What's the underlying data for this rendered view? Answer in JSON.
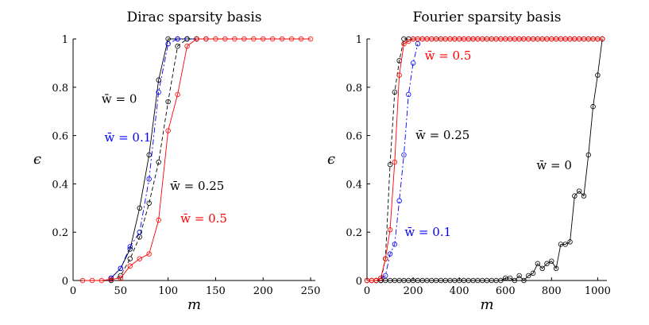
{
  "chart_data": [
    {
      "type": "line",
      "title": "Dirac sparsity basis",
      "xlabel": "m",
      "ylabel": "ϵ",
      "xlim": [
        0,
        255
      ],
      "ylim": [
        0,
        1
      ],
      "xticks": [
        "0",
        "50",
        "100",
        "150",
        "200",
        "250"
      ],
      "yticks": [
        "0",
        "0.2",
        "0.4",
        "0.6",
        "0.8",
        "1"
      ],
      "grid": false,
      "annotations": [
        {
          "text": "w̄ = 0",
          "color": "#000000",
          "x": 30,
          "y": 0.735
        },
        {
          "text": "w̄ = 0.1",
          "color": "#0000ff",
          "x": 33,
          "y": 0.575
        },
        {
          "text": "w̄ = 0.25",
          "color": "#000000",
          "x": 102,
          "y": 0.375
        },
        {
          "text": "w̄ = 0.5",
          "color": "#ff0000",
          "x": 113,
          "y": 0.24
        }
      ],
      "series": [
        {
          "color": "#000000",
          "dash": "solid",
          "x": [
            40,
            50,
            60,
            70,
            80,
            90,
            100,
            110,
            120,
            130,
            140
          ],
          "y": [
            0.01,
            0.05,
            0.13,
            0.3,
            0.52,
            0.83,
            1.0,
            1.0,
            1.0,
            1.0,
            1.0
          ]
        },
        {
          "color": "#0000ff",
          "dash": "dashdot",
          "x": [
            40,
            50,
            60,
            70,
            80,
            90,
            100,
            110,
            120,
            130
          ],
          "y": [
            0.01,
            0.05,
            0.14,
            0.2,
            0.42,
            0.78,
            0.98,
            1.0,
            1.0,
            1.0
          ]
        },
        {
          "color": "#000000",
          "dash": "dashed",
          "x": [
            40,
            50,
            60,
            70,
            80,
            90,
            100,
            110,
            120,
            130
          ],
          "y": [
            0.0,
            0.02,
            0.09,
            0.18,
            0.32,
            0.49,
            0.74,
            0.97,
            1.0,
            1.0
          ]
        },
        {
          "color": "#ff0000",
          "dash": "solid",
          "x": [
            10,
            20,
            30,
            40,
            50,
            60,
            70,
            80,
            90,
            100,
            110,
            120,
            130,
            140,
            150,
            160,
            170,
            180,
            190,
            200,
            210,
            220,
            230,
            240,
            250
          ],
          "y": [
            0,
            0,
            0,
            0.005,
            0.01,
            0.06,
            0.09,
            0.11,
            0.25,
            0.62,
            0.77,
            0.97,
            1.0,
            1.0,
            1.0,
            1.0,
            1.0,
            1.0,
            1.0,
            1.0,
            1.0,
            1.0,
            1.0,
            1.0,
            1.0
          ]
        }
      ]
    },
    {
      "type": "line",
      "title": "Fourier sparsity basis",
      "xlabel": "m",
      "ylabel": "ϵ",
      "xlim": [
        0,
        1040
      ],
      "ylim": [
        0,
        1
      ],
      "xticks": [
        "0",
        "200",
        "400",
        "600",
        "800",
        "1000"
      ],
      "yticks": [
        "0",
        "0.2",
        "0.4",
        "0.6",
        "0.8",
        "1"
      ],
      "grid": false,
      "annotations": [
        {
          "text": "w̄ = 0.5",
          "color": "#ff0000",
          "x": 250,
          "y": 0.915
        },
        {
          "text": "w̄ = 0.25",
          "color": "#000000",
          "x": 210,
          "y": 0.585
        },
        {
          "text": "w̄ = 0",
          "color": "#000000",
          "x": 735,
          "y": 0.46
        },
        {
          "text": "w̄ = 0.1",
          "color": "#0000ff",
          "x": 163,
          "y": 0.185
        }
      ],
      "series": [
        {
          "color": "#000000",
          "dash": "solid",
          "x": [
            0,
            20,
            40,
            60,
            80,
            100,
            120,
            140,
            160,
            180,
            200,
            220,
            240,
            260,
            280,
            300,
            320,
            340,
            360,
            380,
            400,
            420,
            440,
            460,
            480,
            500,
            520,
            540,
            560,
            580,
            600,
            620,
            640,
            660,
            680,
            700,
            720,
            740,
            760,
            780,
            800,
            820,
            840,
            860,
            880,
            900,
            920,
            940,
            960,
            980,
            1000,
            1020
          ],
          "y": [
            0,
            0,
            0,
            0,
            0,
            0,
            0,
            0,
            0,
            0,
            0,
            0,
            0,
            0,
            0,
            0,
            0,
            0,
            0,
            0,
            0,
            0,
            0,
            0,
            0,
            0,
            0,
            0,
            0,
            0,
            0.01,
            0.01,
            0.0,
            0.02,
            0.0,
            0.02,
            0.03,
            0.07,
            0.05,
            0.07,
            0.08,
            0.05,
            0.15,
            0.15,
            0.16,
            0.35,
            0.37,
            0.35,
            0.52,
            0.72,
            0.85,
            1.0
          ]
        },
        {
          "color": "#0000ff",
          "dash": "dashdot",
          "x": [
            60,
            80,
            100,
            120,
            140,
            160,
            180,
            200,
            220
          ],
          "y": [
            0.01,
            0.02,
            0.11,
            0.15,
            0.33,
            0.52,
            0.77,
            0.9,
            0.98
          ]
        },
        {
          "color": "#000000",
          "dash": "dashed",
          "x": [
            40,
            60,
            80,
            100,
            120,
            140,
            160,
            180,
            200,
            220,
            240,
            260,
            280,
            300,
            320,
            340,
            360,
            380,
            400,
            420,
            440,
            460,
            480,
            500,
            520,
            540,
            560,
            580,
            600,
            620,
            640,
            660,
            680,
            700,
            720,
            740,
            760,
            780,
            800,
            820,
            840,
            860,
            880,
            900,
            920,
            940,
            960,
            980,
            1000,
            1020
          ],
          "y": [
            0,
            0,
            0.09,
            0.48,
            0.78,
            0.91,
            1.0,
            1.0,
            1.0,
            1.0,
            1.0,
            1.0,
            1.0,
            1.0,
            1.0,
            1.0,
            1.0,
            1.0,
            1.0,
            1.0,
            1.0,
            1.0,
            1.0,
            1.0,
            1.0,
            1.0,
            1.0,
            1.0,
            1.0,
            1.0,
            1.0,
            1.0,
            1.0,
            1.0,
            1.0,
            1.0,
            1.0,
            1.0,
            1.0,
            1.0,
            1.0,
            1.0,
            1.0,
            1.0,
            1.0,
            1.0,
            1.0,
            1.0,
            1.0,
            1.0
          ]
        },
        {
          "color": "#ff0000",
          "dash": "solid",
          "x": [
            0,
            20,
            40,
            60,
            80,
            100,
            120,
            140,
            160,
            180,
            200,
            220,
            240,
            260,
            280,
            300,
            320,
            340,
            360,
            380,
            400,
            420,
            440,
            460,
            480,
            500,
            520,
            540,
            560,
            580,
            600,
            620,
            640,
            660,
            680,
            700,
            720,
            740,
            760,
            780,
            800,
            820,
            840,
            860,
            880,
            900,
            920,
            940,
            960,
            980,
            1000,
            1020
          ],
          "y": [
            0,
            0,
            0,
            0.01,
            0.09,
            0.21,
            0.49,
            0.85,
            0.98,
            0.99,
            1.0,
            1.0,
            1.0,
            1.0,
            1.0,
            1.0,
            1.0,
            1.0,
            1.0,
            1.0,
            1.0,
            1.0,
            1.0,
            1.0,
            1.0,
            1.0,
            1.0,
            1.0,
            1.0,
            1.0,
            1.0,
            1.0,
            1.0,
            1.0,
            1.0,
            1.0,
            1.0,
            1.0,
            1.0,
            1.0,
            1.0,
            1.0,
            1.0,
            1.0,
            1.0,
            1.0,
            1.0,
            1.0,
            1.0,
            1.0,
            1.0,
            1.0
          ]
        }
      ]
    }
  ]
}
